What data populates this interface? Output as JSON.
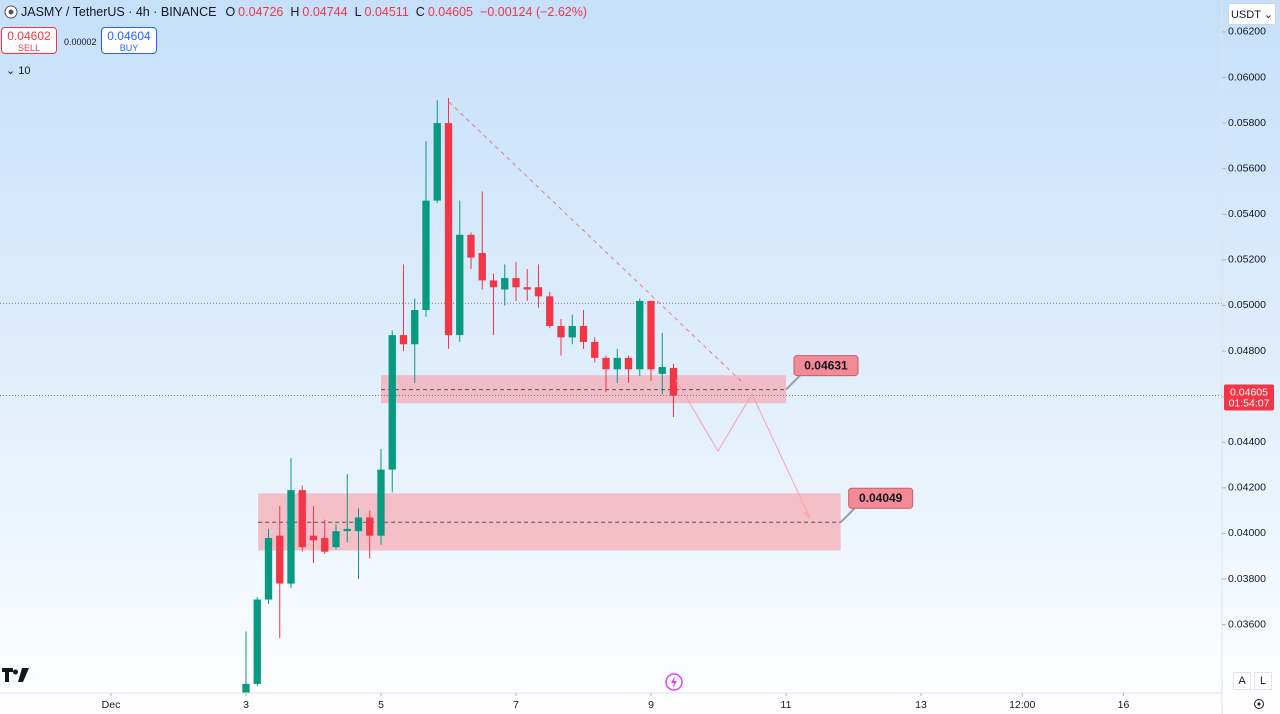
{
  "chart_data": {
    "type": "candlestick",
    "title": "JASMY / TetherUS · 4h · BINANCE",
    "up_color": "#089981",
    "down_color": "#f23645",
    "x": [
      3,
      3.1667,
      3.3333,
      3.5,
      3.6667,
      3.8333,
      4,
      4.1667,
      4.3333,
      4.5,
      4.6667,
      4.8333,
      5,
      5.1667,
      5.3333,
      5.5,
      5.6667,
      5.8333,
      6,
      6.1667,
      6.3333,
      6.5,
      6.6667,
      6.8333,
      7,
      7.1667,
      7.3333,
      7.5,
      7.6667,
      7.8333,
      8,
      8.1667,
      8.3333,
      8.5,
      8.6667,
      8.8333,
      9,
      9.1667,
      9.3333
    ],
    "open": [
      0.033,
      0.0334,
      0.0371,
      0.0399,
      0.0378,
      0.0419,
      0.0399,
      0.0398,
      0.0394,
      0.0401,
      0.0401,
      0.0407,
      0.0399,
      0.0428,
      0.0487,
      0.0483,
      0.0498,
      0.0546,
      0.058,
      0.0487,
      0.0531,
      0.0523,
      0.0511,
      0.0507,
      0.0512,
      0.0508,
      0.0508,
      0.0504,
      0.0491,
      0.0486,
      0.0491,
      0.0484,
      0.0477,
      0.0472,
      0.0477,
      0.0472,
      0.0502,
      0.047,
      0.04726
    ],
    "high": [
      0.0357,
      0.0372,
      0.0402,
      0.0412,
      0.0433,
      0.0421,
      0.0412,
      0.0406,
      0.0404,
      0.0426,
      0.0411,
      0.041,
      0.0437,
      0.0489,
      0.0518,
      0.0503,
      0.0572,
      0.059,
      0.0591,
      0.0546,
      0.0532,
      0.055,
      0.0514,
      0.0518,
      0.0519,
      0.0516,
      0.0518,
      0.0506,
      0.0494,
      0.0496,
      0.0498,
      0.0486,
      0.0478,
      0.0481,
      0.0478,
      0.0503,
      0.0502,
      0.0488,
      0.04744
    ],
    "low": [
      0.0329,
      0.0333,
      0.0369,
      0.0354,
      0.0376,
      0.0392,
      0.0387,
      0.0391,
      0.0393,
      0.0396,
      0.038,
      0.0389,
      0.0395,
      0.0418,
      0.048,
      0.0466,
      0.0495,
      0.0545,
      0.0481,
      0.0484,
      0.0516,
      0.0507,
      0.0487,
      0.05,
      0.0502,
      0.0502,
      0.0499,
      0.049,
      0.0478,
      0.0483,
      0.0481,
      0.0475,
      0.0462,
      0.0466,
      0.0466,
      0.0469,
      0.0467,
      0.0461,
      0.04511
    ],
    "close": [
      0.0334,
      0.0371,
      0.0398,
      0.0378,
      0.0419,
      0.0394,
      0.0397,
      0.0392,
      0.0401,
      0.0402,
      0.0407,
      0.0399,
      0.0428,
      0.0487,
      0.0483,
      0.0498,
      0.0546,
      0.058,
      0.0487,
      0.0531,
      0.0521,
      0.0511,
      0.0508,
      0.0512,
      0.0508,
      0.0507,
      0.0504,
      0.0491,
      0.0486,
      0.0491,
      0.0484,
      0.0477,
      0.0472,
      0.0477,
      0.0472,
      0.0502,
      0.0472,
      0.0473,
      0.04605
    ],
    "change_label": "−0.00124 (−2.62%)",
    "countdown": "01:54:07",
    "xlim": [
      -0.6444,
      17.4593
    ],
    "xticks": [
      {
        "value": 1,
        "label": "Dec"
      },
      3,
      5,
      7,
      9,
      11,
      13,
      {
        "value": 14.5,
        "label": "12:00"
      },
      16
    ],
    "ylim": [
      0.033,
      0.0634
    ],
    "yticks": [
      {
        "value": 0.036,
        "label": "0.03600"
      },
      {
        "value": 0.038,
        "label": "0.03800"
      },
      {
        "value": 0.04,
        "label": "0.04000"
      },
      {
        "value": 0.042,
        "label": "0.04200"
      },
      {
        "value": 0.044,
        "label": "0.04400"
      },
      {
        "value": 0.046,
        "label": "0.04600"
      },
      {
        "value": 0.048,
        "label": "0.04800"
      },
      {
        "value": 0.05,
        "label": "0.05000"
      },
      {
        "value": 0.052,
        "label": "0.05200"
      },
      {
        "value": 0.054,
        "label": "0.05400"
      },
      {
        "value": 0.056,
        "label": "0.05600"
      },
      {
        "value": 0.058,
        "label": "0.05800"
      },
      {
        "value": 0.06,
        "label": "0.06000"
      },
      {
        "value": 0.062,
        "label": "0.06200"
      }
    ],
    "alert_line": 0.0501,
    "zones": [
      {
        "value": 0.04631,
        "low": 0.04571,
        "high": 0.04694,
        "x": [
          5,
          11
        ]
      },
      {
        "value": 0.04049,
        "low": 0.03925,
        "high": 0.04176,
        "x": [
          3.18,
          11.81
        ]
      }
    ]
  },
  "ui": {
    "open_label": "O",
    "high_label": "H",
    "low_label": "L",
    "close_label": "C",
    "sell_price": "0.04602",
    "sell_label": "SELL",
    "spread": "0.00002",
    "buy_price": "0.04604",
    "buy_label": "BUY",
    "indicator_count": "10",
    "currency": "USDT",
    "auto_button": "A",
    "log_button": "L"
  }
}
